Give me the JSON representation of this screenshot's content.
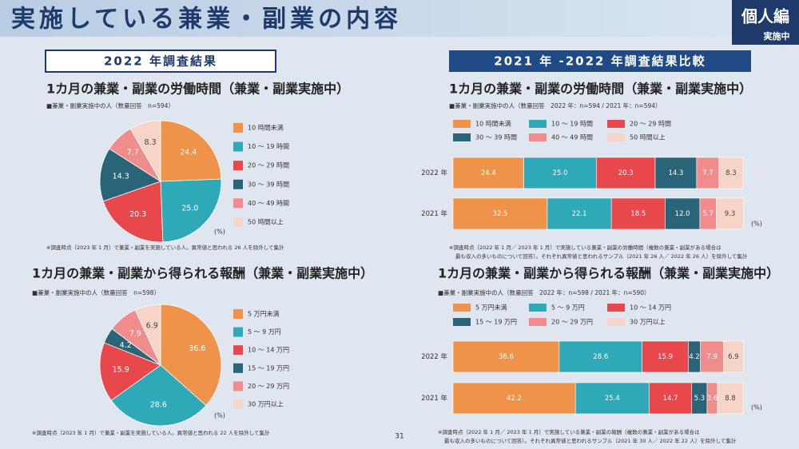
{
  "header": {
    "title": "実施している兼業・副業の内容",
    "badge": "個人編",
    "badge_sub": "実施中"
  },
  "sections": [
    "2022 年調査結果",
    "2021 年 -2022 年調査結果比較"
  ],
  "page_number": "31",
  "chart_data": [
    {
      "type": "pie",
      "title": "1カ月の兼業・副業の労働時間（兼業・副業実施中）",
      "subtitle": "■兼業・副業実施中の人（数量回答　n=594）",
      "categories": [
        "10 時間未満",
        "10 ～ 19 時間",
        "20 ～ 29 時間",
        "30 ～ 39 時間",
        "40 ～ 49 時間",
        "50 時間以上"
      ],
      "values": [
        24.4,
        25.0,
        20.3,
        14.3,
        7.7,
        8.3
      ],
      "value_labels": [
        "24.4",
        "25.0",
        "20.3",
        "14.3",
        "7.7",
        "8.3"
      ],
      "colors": [
        "#f0934a",
        "#2fa9b8",
        "#e8474b",
        "#2a6478",
        "#f08c8c",
        "#f6d5c8"
      ],
      "unit": "(%)",
      "note": [
        "※調査時点（2023 年 1 月）で兼業・副業を実施している人。異常値と思われる 26 人を除外して集計"
      ]
    },
    {
      "type": "pie",
      "title": "1カ月の兼業・副業から得られる報酬（兼業・副業実施中）",
      "subtitle": "■兼業・副業実施中の人（数量回答　n=598）",
      "categories": [
        "5 万円未満",
        "5 ～ 9 万円",
        "10 ～ 14 万円",
        "15 ～ 19 万円",
        "20 ～ 29 万円",
        "30 万円以上"
      ],
      "values": [
        36.6,
        28.6,
        15.9,
        4.2,
        7.9,
        6.9
      ],
      "value_labels": [
        "36.6",
        "28.6",
        "15.9",
        "4.2",
        "7.9",
        "6.9"
      ],
      "colors": [
        "#f0934a",
        "#2fa9b8",
        "#e8474b",
        "#2a6478",
        "#f08c8c",
        "#f6d5c8"
      ],
      "unit": "(%)",
      "note": [
        "※調査時点（2023 年 1 月）で兼業・副業を実施している人。異常値と思われる 22 人を除外して集計"
      ]
    },
    {
      "type": "bar",
      "orientation": "horizontal",
      "stacked": true,
      "title": "1カ月の兼業・副業の労働時間（兼業・副業実施中）",
      "subtitle": "■兼業・副業実施中の人（数量回答　2022 年：n=594 / 2021 年：n=594）",
      "categories": [
        "2022 年",
        "2021 年"
      ],
      "xlim": [
        0,
        100
      ],
      "series": [
        {
          "name": "10 時間未満",
          "color": "#f0934a",
          "values": [
            24.4,
            32.5
          ],
          "value_labels": [
            "24.4",
            "32.5"
          ]
        },
        {
          "name": "10 ～ 19 時間",
          "color": "#2fa9b8",
          "values": [
            25.0,
            22.1
          ],
          "value_labels": [
            "25.0",
            "22.1"
          ]
        },
        {
          "name": "20 ～ 29 時間",
          "color": "#e8474b",
          "values": [
            20.3,
            18.5
          ],
          "value_labels": [
            "20.3",
            "18.5"
          ]
        },
        {
          "name": "30 ～ 39 時間",
          "color": "#2a6478",
          "values": [
            14.3,
            12.0
          ],
          "value_labels": [
            "14.3",
            "12.0"
          ]
        },
        {
          "name": "40 ～ 49 時間",
          "color": "#f08c8c",
          "values": [
            7.7,
            5.7
          ],
          "value_labels": [
            "7.7",
            "5.7"
          ]
        },
        {
          "name": "50 時間以上",
          "color": "#f6d5c8",
          "values": [
            8.3,
            9.3
          ],
          "value_labels": [
            "8.3",
            "9.3"
          ]
        }
      ],
      "unit": "(%)",
      "note": [
        "※調査時点（2022 年 1 月／ 2023 年 1 月）で実施している兼業・副業の労働時間（複数の兼業・副業がある場合は",
        "最も収入の多いものについて回答）。それぞれ異常値と思われるサンプル（2021 年 26 人／ 2022 年 26 人）を除外して集計"
      ]
    },
    {
      "type": "bar",
      "orientation": "horizontal",
      "stacked": true,
      "title": "1カ月の兼業・副業から得られる報酬（兼業・副業実施中）",
      "subtitle": "■兼業・副業実施中の人（数量回答　2022 年：n=598 / 2021 年：n=590）",
      "categories": [
        "2022 年",
        "2021 年"
      ],
      "xlim": [
        0,
        100
      ],
      "series": [
        {
          "name": "5 万円未満",
          "color": "#f0934a",
          "values": [
            36.6,
            42.2
          ],
          "value_labels": [
            "36.6",
            "42.2"
          ]
        },
        {
          "name": "5 ～ 9 万円",
          "color": "#2fa9b8",
          "values": [
            28.6,
            25.4
          ],
          "value_labels": [
            "28.6",
            "25.4"
          ]
        },
        {
          "name": "10 ～ 14 万円",
          "color": "#e8474b",
          "values": [
            15.9,
            14.7
          ],
          "value_labels": [
            "15.9",
            "14.7"
          ]
        },
        {
          "name": "15 ～ 19 万円",
          "color": "#2a6478",
          "values": [
            4.2,
            5.3
          ],
          "value_labels": [
            "4.2",
            "5.3"
          ]
        },
        {
          "name": "20 ～ 29 万円",
          "color": "#f08c8c",
          "values": [
            7.9,
            3.6
          ],
          "value_labels": [
            "7.9",
            "3.6"
          ]
        },
        {
          "name": "30 万円以上",
          "color": "#f6d5c8",
          "values": [
            6.9,
            8.8
          ],
          "value_labels": [
            "6.9",
            "8.8"
          ]
        }
      ],
      "unit": "(%)",
      "note": [
        "※調査時点（2022 年 1 月／ 2023 年 1 月）で実施している兼業・副業の報酬（複数の兼業・副業がある場合は",
        "最も収入の多いものについて回答）。それぞれ異常値と思われるサンプル（2021 年 30 人／ 2022 年 22 人）を除外して集計"
      ]
    }
  ]
}
